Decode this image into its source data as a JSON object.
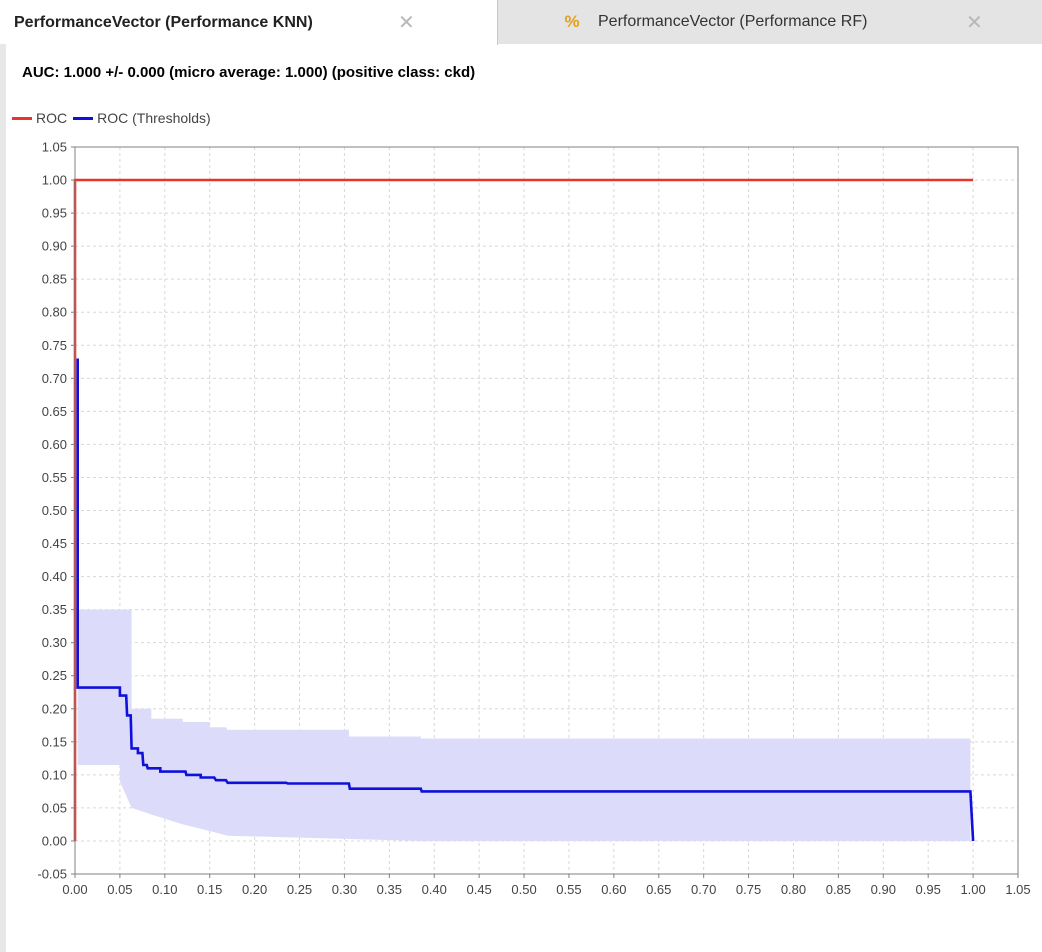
{
  "tabs": [
    {
      "label": "PerformanceVector (Performance KNN)",
      "active": true,
      "close_icon": "close-icon"
    },
    {
      "label": "PerformanceVector (Performance RF)",
      "active": false,
      "icon": "percent-icon",
      "icon_glyph": "%",
      "close_icon": "close-icon"
    }
  ],
  "close_glyph": "✕",
  "chart_data": {
    "type": "line",
    "title": "AUC: 1.000 +/- 0.000 (micro average: 1.000) (positive class: ckd)",
    "xlabel": "",
    "ylabel": "",
    "xlim": [
      0,
      1.05
    ],
    "ylim": [
      -0.05,
      1.05
    ],
    "xticks": [
      "0.00",
      "0.05",
      "0.10",
      "0.15",
      "0.20",
      "0.25",
      "0.30",
      "0.35",
      "0.40",
      "0.45",
      "0.50",
      "0.55",
      "0.60",
      "0.65",
      "0.70",
      "0.75",
      "0.80",
      "0.85",
      "0.90",
      "0.95",
      "1.00",
      "1.05"
    ],
    "yticks": [
      "-0.05",
      "0.00",
      "0.05",
      "0.10",
      "0.15",
      "0.20",
      "0.25",
      "0.30",
      "0.35",
      "0.40",
      "0.45",
      "0.50",
      "0.55",
      "0.60",
      "0.65",
      "0.70",
      "0.75",
      "0.80",
      "0.85",
      "0.90",
      "0.95",
      "1.00",
      "1.05"
    ],
    "grid": true,
    "legend_position": "top-left",
    "series": [
      {
        "name": "ROC",
        "color": "#e8352b",
        "points": [
          [
            0,
            0
          ],
          [
            0,
            1.0
          ],
          [
            0.005,
            1.0
          ],
          [
            1.0,
            1.0
          ]
        ]
      },
      {
        "name": "ROC (Thresholds)",
        "color": "#1010dd",
        "points": [
          [
            0.003,
            0.73
          ],
          [
            0.003,
            0.232
          ],
          [
            0.05,
            0.232
          ],
          [
            0.05,
            0.22
          ],
          [
            0.057,
            0.22
          ],
          [
            0.058,
            0.19
          ],
          [
            0.062,
            0.19
          ],
          [
            0.063,
            0.14
          ],
          [
            0.07,
            0.14
          ],
          [
            0.07,
            0.133
          ],
          [
            0.075,
            0.133
          ],
          [
            0.076,
            0.115
          ],
          [
            0.08,
            0.115
          ],
          [
            0.081,
            0.11
          ],
          [
            0.095,
            0.11
          ],
          [
            0.095,
            0.105
          ],
          [
            0.123,
            0.105
          ],
          [
            0.124,
            0.1
          ],
          [
            0.14,
            0.1
          ],
          [
            0.14,
            0.096
          ],
          [
            0.155,
            0.096
          ],
          [
            0.157,
            0.092
          ],
          [
            0.168,
            0.092
          ],
          [
            0.17,
            0.088
          ],
          [
            0.235,
            0.088
          ],
          [
            0.237,
            0.087
          ],
          [
            0.305,
            0.087
          ],
          [
            0.306,
            0.079
          ],
          [
            0.385,
            0.079
          ],
          [
            0.386,
            0.075
          ],
          [
            0.997,
            0.075
          ],
          [
            1.0,
            0.0
          ]
        ],
        "band_upper": [
          [
            0.003,
            0.35
          ],
          [
            0.05,
            0.35
          ],
          [
            0.063,
            0.35
          ],
          [
            0.063,
            0.2
          ],
          [
            0.085,
            0.2
          ],
          [
            0.085,
            0.185
          ],
          [
            0.12,
            0.185
          ],
          [
            0.12,
            0.18
          ],
          [
            0.15,
            0.18
          ],
          [
            0.15,
            0.172
          ],
          [
            0.168,
            0.172
          ],
          [
            0.17,
            0.168
          ],
          [
            0.305,
            0.168
          ],
          [
            0.305,
            0.158
          ],
          [
            0.385,
            0.158
          ],
          [
            0.385,
            0.155
          ],
          [
            0.997,
            0.155
          ]
        ],
        "band_lower": [
          [
            0.997,
            0.0
          ],
          [
            0.385,
            0.0
          ],
          [
            0.385,
            0.0
          ],
          [
            0.305,
            0.003
          ],
          [
            0.17,
            0.008
          ],
          [
            0.15,
            0.015
          ],
          [
            0.12,
            0.025
          ],
          [
            0.085,
            0.04
          ],
          [
            0.063,
            0.05
          ],
          [
            0.05,
            0.09
          ],
          [
            0.05,
            0.115
          ],
          [
            0.003,
            0.115
          ]
        ],
        "band_color": "#dcdcfa"
      }
    ]
  }
}
